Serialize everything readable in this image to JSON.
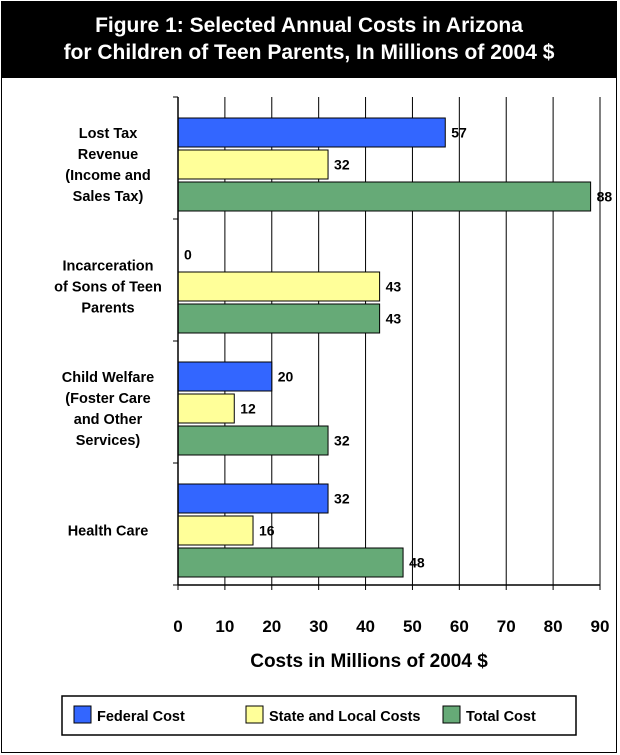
{
  "title_lines": [
    "Figure 1: Selected Annual Costs in Arizona",
    "for Children of Teen Parents, In Millions of 2004 $"
  ],
  "colors": {
    "federal": "#3366ff",
    "state": "#ffff99",
    "total": "#66aa77"
  },
  "chart_data": {
    "type": "bar",
    "orientation": "horizontal",
    "categories": [
      [
        "Lost Tax",
        "Revenue",
        "(Income and",
        "Sales Tax)"
      ],
      [
        "Incarceration",
        "of Sons of Teen",
        "Parents"
      ],
      [
        "Child Welfare",
        "(Foster Care",
        "and Other",
        "Services)"
      ],
      [
        "Health Care"
      ]
    ],
    "series": [
      {
        "name": "Federal Cost",
        "values": [
          57,
          0,
          20,
          32
        ],
        "color": "#3366ff"
      },
      {
        "name": "State and Local Costs",
        "values": [
          32,
          43,
          12,
          16
        ],
        "color": "#ffff99"
      },
      {
        "name": "Total Cost",
        "values": [
          88,
          43,
          32,
          48
        ],
        "color": "#66aa77"
      }
    ],
    "xlabel": "Costs in Millions of 2004 $",
    "xlim": [
      0,
      90
    ],
    "xticks": [
      0,
      10,
      20,
      30,
      40,
      50,
      60,
      70,
      80,
      90
    ],
    "grid": "vertical",
    "legend_position": "bottom"
  }
}
